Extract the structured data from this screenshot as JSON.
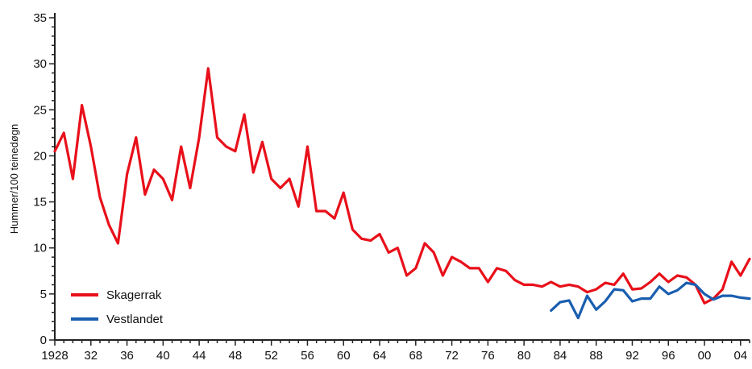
{
  "chart_data": {
    "type": "line",
    "title": "",
    "xlabel": "",
    "ylabel": "Hummer/100 teinedøgn",
    "xlim": [
      1928,
      2005
    ],
    "ylim": [
      0,
      35
    ],
    "y_ticks": [
      0,
      5,
      10,
      15,
      20,
      25,
      30,
      35
    ],
    "x_ticks": [
      1928,
      1932,
      1936,
      1940,
      1944,
      1948,
      1952,
      1956,
      1960,
      1964,
      1968,
      1972,
      1976,
      1980,
      1984,
      1988,
      1992,
      1996,
      2000,
      2004
    ],
    "x_tick_labels": [
      "1928",
      "32",
      "36",
      "40",
      "44",
      "48",
      "52",
      "56",
      "60",
      "64",
      "68",
      "72",
      "76",
      "80",
      "84",
      "88",
      "92",
      "96",
      "00",
      "04"
    ],
    "grid": false,
    "legend": "bottom-left",
    "series": [
      {
        "name": "Skagerrak",
        "color": "#e8101a",
        "x": [
          1928,
          1929,
          1930,
          1931,
          1932,
          1933,
          1934,
          1935,
          1936,
          1937,
          1938,
          1939,
          1940,
          1941,
          1942,
          1943,
          1944,
          1945,
          1946,
          1947,
          1948,
          1949,
          1950,
          1951,
          1952,
          1953,
          1954,
          1955,
          1956,
          1957,
          1958,
          1959,
          1960,
          1961,
          1962,
          1963,
          1964,
          1965,
          1966,
          1967,
          1968,
          1969,
          1970,
          1971,
          1972,
          1973,
          1974,
          1975,
          1976,
          1977,
          1978,
          1979,
          1980,
          1981,
          1982,
          1983,
          1984,
          1985,
          1986,
          1987,
          1988,
          1989,
          1990,
          1991,
          1992,
          1993,
          1994,
          1995,
          1996,
          1997,
          1998,
          1999,
          2000,
          2001,
          2002,
          2003,
          2004,
          2005
        ],
        "y": [
          20.5,
          22.5,
          17.5,
          25.5,
          21.0,
          15.5,
          12.5,
          10.5,
          18.0,
          22.0,
          15.8,
          18.5,
          17.5,
          15.2,
          21.0,
          16.5,
          22.0,
          29.5,
          22.0,
          21.0,
          20.5,
          24.5,
          18.2,
          21.5,
          17.5,
          16.5,
          17.5,
          14.5,
          21.0,
          14.0,
          14.0,
          13.2,
          16.0,
          12.0,
          11.0,
          10.8,
          11.5,
          9.5,
          10.0,
          7.0,
          7.8,
          10.5,
          9.5,
          7.0,
          9.0,
          8.5,
          7.8,
          7.8,
          6.3,
          7.8,
          7.5,
          6.5,
          6.0,
          6.0,
          5.8,
          6.3,
          5.8,
          6.0,
          5.8,
          5.2,
          5.5,
          6.2,
          6.0,
          7.2,
          5.5,
          5.6,
          6.3,
          7.2,
          6.3,
          7.0,
          6.8,
          6.0,
          4.0,
          4.5,
          5.5,
          8.5,
          7.0,
          8.8
        ]
      },
      {
        "name": "Vestlandet",
        "color": "#1a5eb0",
        "x": [
          1983,
          1984,
          1985,
          1986,
          1987,
          1988,
          1989,
          1990,
          1991,
          1992,
          1993,
          1994,
          1995,
          1996,
          1997,
          1998,
          1999,
          2000,
          2001,
          2002,
          2003,
          2004,
          2005
        ],
        "y": [
          3.2,
          4.1,
          4.3,
          2.4,
          4.8,
          3.3,
          4.2,
          5.5,
          5.4,
          4.2,
          4.5,
          4.5,
          5.8,
          5.0,
          5.4,
          6.2,
          6.0,
          5.0,
          4.4,
          4.8,
          4.8,
          4.6,
          4.5
        ]
      }
    ]
  }
}
